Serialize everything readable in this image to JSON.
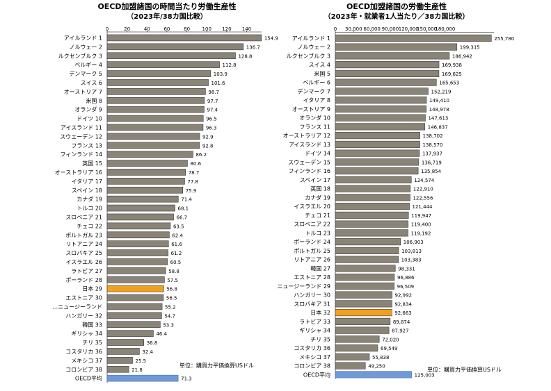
{
  "colors": {
    "bar": "#8a8478",
    "bar_edge": "#3a3a3a",
    "japan": "#f0a020",
    "average": "#6f9ad6"
  },
  "chart_data": [
    {
      "type": "bar",
      "orientation": "horizontal",
      "title": "OECD加盟諸国の時間当たり労働生産性",
      "subtitle": "（2023年/38カ国比較）",
      "unit_note": "単位：購買力平価換算USドル",
      "xlim": [
        0,
        155
      ],
      "xticks": [
        0,
        20,
        40,
        60,
        80,
        100,
        120,
        140
      ],
      "tick_labels": [
        "0",
        "20",
        "40",
        "60",
        "80",
        "100",
        "120",
        "140"
      ],
      "categories": [
        "アイルランド 1",
        "ノルウェー 2",
        "ルクセンブルク 3",
        "ベルギー 4",
        "デンマーク 5",
        "スイス 6",
        "オーストリア 7",
        "米国 8",
        "オランダ 9",
        "ドイツ 10",
        "アイスランド 11",
        "スウェーデン 12",
        "フランス 13",
        "フィンランド 14",
        "英国 15",
        "オーストラリア 16",
        "イタリア 17",
        "スペイン 18",
        "カナダ 19",
        "トルコ 20",
        "スロベニア 21",
        "チェコ 22",
        "ポルトガル 23",
        "リトアニア 24",
        "スロバキア 25",
        "イスラエル 26",
        "ラトビア 27",
        "ポーランド 28",
        "日本 29",
        "エストニア 30",
        "…ニュージーランド",
        "ハンガリー 32",
        "韓国 33",
        "ギリシャ 34",
        "チリ 35",
        "コスタリカ 36",
        "メキシコ 37",
        "コロンビア 38",
        "OECD平均"
      ],
      "values": [
        154.9,
        136.7,
        128.8,
        112.8,
        103.9,
        101.6,
        98.7,
        97.7,
        97.4,
        96.5,
        96.3,
        92.9,
        92.8,
        86.2,
        80.6,
        78.7,
        77.8,
        75.9,
        71.4,
        68.1,
        66.7,
        63.5,
        62.4,
        61.6,
        61.2,
        60.5,
        58.8,
        57.5,
        56.8,
        56.5,
        55.2,
        54.7,
        53.3,
        46.4,
        36.8,
        32.4,
        25.5,
        21.8,
        71.3
      ],
      "value_labels": [
        "154.9",
        "136.7",
        "128.8",
        "112.8",
        "103.9",
        "101.6",
        "98.7",
        "97.7",
        "97.4",
        "96.5",
        "96.3",
        "92.9",
        "92.8",
        "86.2",
        "80.6",
        "78.7",
        "77.8",
        "75.9",
        "71.4",
        "68.1",
        "66.7",
        "63.5",
        "62.4",
        "61.6",
        "61.2",
        "60.5",
        "58.8",
        "57.5",
        "56.8",
        "56.5",
        "55.2",
        "54.7",
        "53.3",
        "46.4",
        "36.8",
        "32.4",
        "25.5",
        "21.8",
        "71.3"
      ],
      "highlight": [
        "日本 29"
      ],
      "average_label": "OECD平均"
    },
    {
      "type": "bar",
      "orientation": "horizontal",
      "title": "OECD加盟諸国の労働生産性",
      "subtitle": "（2023年・就業者1人当たり／38カ国比較）",
      "unit_note": "単位：購買力平価換算USドル",
      "xlim": [
        0,
        260000
      ],
      "xticks": [
        0,
        30000,
        60000,
        90000,
        120000,
        150000,
        180000
      ],
      "tick_labels": [
        "0",
        "30,000",
        "60,000",
        "90,000",
        "120,000",
        "150,000",
        "180,000"
      ],
      "categories": [
        "アイルランド 1",
        "ノルウェー 2",
        "ルクセンブルク 3",
        "スイス 4",
        "米国 5",
        "ベルギー 6",
        "デンマーク 7",
        "イタリア 8",
        "オーストリア 9",
        "オランダ 10",
        "フランス 11",
        "オーストラリア 12",
        "アイスランド 13",
        "ドイツ 14",
        "スウェーデン 15",
        "フィンランド 16",
        "スペイン 17",
        "英国 18",
        "カナダ 19",
        "イスラエル 20",
        "チェコ 21",
        "スロベニア 22",
        "トルコ 23",
        "ポーランド 24",
        "ポルトガル 25",
        "リトアニア 26",
        "韓国 27",
        "エストニア 28",
        "ニュージーランド 29",
        "ハンガリー 30",
        "スロバキア 31",
        "日本 32",
        "ラトビア 33",
        "ギリシャ 34",
        "チリ 35",
        "コスタリカ 36",
        "メキシコ 37",
        "コロンビア 38",
        "OECD平均"
      ],
      "values": [
        255780,
        199315,
        186942,
        169938,
        169825,
        165653,
        152219,
        149410,
        148978,
        147613,
        146837,
        138702,
        138570,
        137937,
        136719,
        135854,
        124574,
        122910,
        122556,
        121444,
        119947,
        119400,
        119192,
        106903,
        103813,
        103383,
        98331,
        96886,
        96509,
        92992,
        92834,
        92663,
        89874,
        87927,
        72020,
        69549,
        55838,
        49250,
        125003
      ],
      "value_labels": [
        "255,780",
        "199,315",
        "186,942",
        "169,938",
        "169,825",
        "165,653",
        "152,219",
        "149,410",
        "148,978",
        "147,613",
        "146,837",
        "138,702",
        "138,570",
        "137,937",
        "136,719",
        "135,854",
        "124,574",
        "122,910",
        "122,556",
        "121,444",
        "119,947",
        "119,400",
        "119,192",
        "106,903",
        "103,813",
        "103,383",
        "98,331",
        "96,886",
        "96,509",
        "92,992",
        "92,834",
        "92,663",
        "89,874",
        "87,927",
        "72,020",
        "69,549",
        "55,838",
        "49,250",
        "125,003"
      ],
      "highlight": [
        "日本 32"
      ],
      "average_label": "OECD平均"
    }
  ]
}
